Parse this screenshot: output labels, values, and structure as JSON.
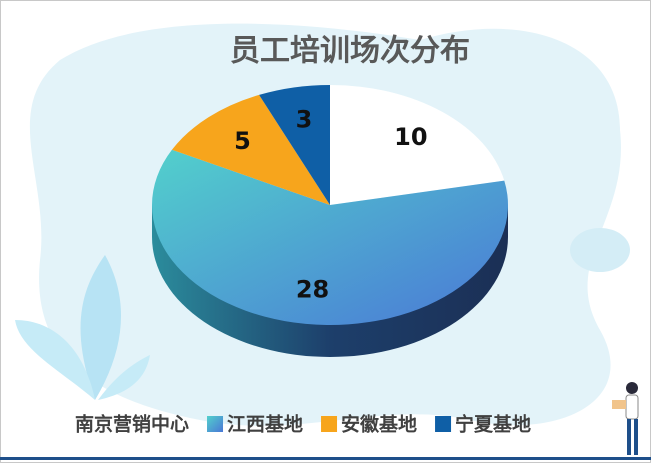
{
  "chart_data": {
    "type": "pie",
    "title": "员工培训场次分布",
    "categories": [
      "南京营销中心",
      "江西基地",
      "安徽基地",
      "宁夏基地"
    ],
    "values": [
      10,
      28,
      5,
      3
    ],
    "colors": [
      "#ffffff",
      "#4bbfd0",
      "#f7a51c",
      "#0f5fa6"
    ]
  }
}
